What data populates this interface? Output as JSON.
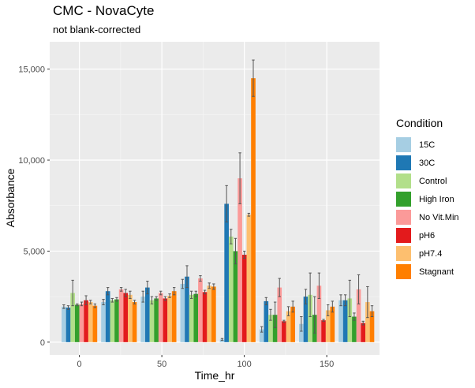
{
  "title": "CMC - NovaCyte",
  "subtitle": "not blank-corrected",
  "chart_data": {
    "type": "bar",
    "xlabel": "Time_hr",
    "ylabel": "Absorbance",
    "xlim": [
      -18,
      182
    ],
    "ylim": [
      -700,
      16500
    ],
    "x_ticks": [
      0,
      50,
      100,
      150
    ],
    "x_tick_labels": [
      "0",
      "50",
      "100",
      "150"
    ],
    "y_ticks": [
      0,
      5000,
      10000,
      15000
    ],
    "y_tick_labels": [
      "0",
      "5,000",
      "10,000",
      "15,000"
    ],
    "legend_title": "Condition",
    "legend_position": "right",
    "grid": true,
    "x": [
      0,
      24,
      48,
      72,
      96,
      120,
      144,
      168
    ],
    "series": [
      {
        "name": "15C",
        "color": "#A6CEE3",
        "values": [
          1950,
          2200,
          2500,
          3200,
          150,
          700,
          1000,
          2300
        ],
        "err": [
          100,
          150,
          300,
          250,
          50,
          150,
          400,
          300
        ]
      },
      {
        "name": "30C",
        "color": "#1F78B4",
        "values": [
          1900,
          2800,
          3000,
          3600,
          7600,
          2250,
          2500,
          2300
        ],
        "err": [
          100,
          200,
          350,
          600,
          1000,
          200,
          400,
          300
        ]
      },
      {
        "name": "Control",
        "color": "#B2DF8A",
        "values": [
          2700,
          2300,
          2300,
          2600,
          5800,
          1500,
          2600,
          2400
        ],
        "err": [
          700,
          100,
          200,
          200,
          400,
          300,
          1200,
          1000
        ]
      },
      {
        "name": "High Iron",
        "color": "#33A02C",
        "values": [
          2050,
          2350,
          2400,
          2650,
          5000,
          1500,
          1500,
          1400
        ],
        "err": [
          50,
          100,
          100,
          150,
          700,
          700,
          1000,
          200
        ]
      },
      {
        "name": "No Vit.Min",
        "color": "#FB9A99",
        "values": [
          2100,
          2900,
          2700,
          3500,
          9000,
          3000,
          3100,
          2900
        ],
        "err": [
          100,
          100,
          100,
          150,
          1400,
          500,
          700,
          800
        ]
      },
      {
        "name": "pH6",
        "color": "#E31A1C",
        "values": [
          2300,
          2700,
          2400,
          2750,
          4800,
          1150,
          1200,
          1050
        ],
        "err": [
          250,
          200,
          100,
          100,
          200,
          50,
          50,
          100
        ]
      },
      {
        "name": "pH7.4",
        "color": "#FDBF6F",
        "values": [
          2200,
          2600,
          2550,
          3100,
          7000,
          1700,
          1750,
          2200
        ],
        "err": [
          100,
          200,
          100,
          150,
          80,
          250,
          300,
          850
        ]
      },
      {
        "name": "Stagnant",
        "color": "#FF7F00",
        "values": [
          2000,
          2200,
          2800,
          3050,
          14500,
          1950,
          1950,
          1700
        ],
        "err": [
          100,
          100,
          200,
          150,
          1000,
          300,
          300,
          300
        ]
      }
    ]
  }
}
